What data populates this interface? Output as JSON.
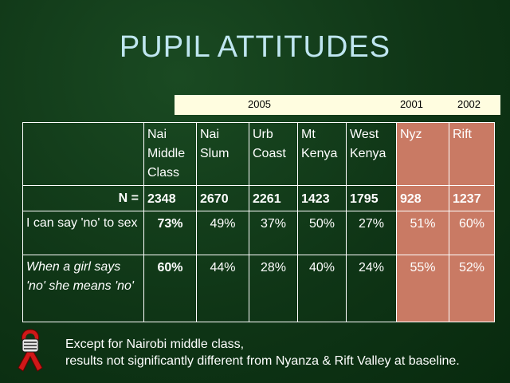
{
  "title": "PUPIL ATTITUDES",
  "years": {
    "y2005": "2005",
    "y2001": "2001",
    "y2002": "2002"
  },
  "table": {
    "headers": [
      "Nai\nMiddle\nClass",
      "Nai\nSlum",
      "Urb\nCoast",
      "Mt\nKenya",
      "West\nKenya",
      "Nyz",
      "Rift"
    ],
    "n_label": "N =",
    "n_values": [
      "2348",
      "2670",
      "2261",
      "1423",
      "1795",
      "928",
      "1237"
    ],
    "rows": [
      {
        "label": "I can say 'no' to sex",
        "values": [
          "73%",
          "49%",
          "37%",
          "50%",
          "27%",
          "51%",
          "60%"
        ]
      },
      {
        "label": "When a girl says 'no' she means 'no'",
        "values": [
          "60%",
          "44%",
          "28%",
          "40%",
          "24%",
          "55%",
          "52%"
        ]
      }
    ]
  },
  "note": {
    "line1": "Except for Nairobi middle class,",
    "line2": "results not significantly different from Nyanza & Rift Valley at baseline."
  },
  "colors": {
    "background": "#0f3516",
    "title": "#bfe6f0",
    "baseline_col": "#c97a64",
    "year_bar": "#fffde0"
  },
  "icons": {
    "ribbon": "awareness-ribbon-icon"
  }
}
